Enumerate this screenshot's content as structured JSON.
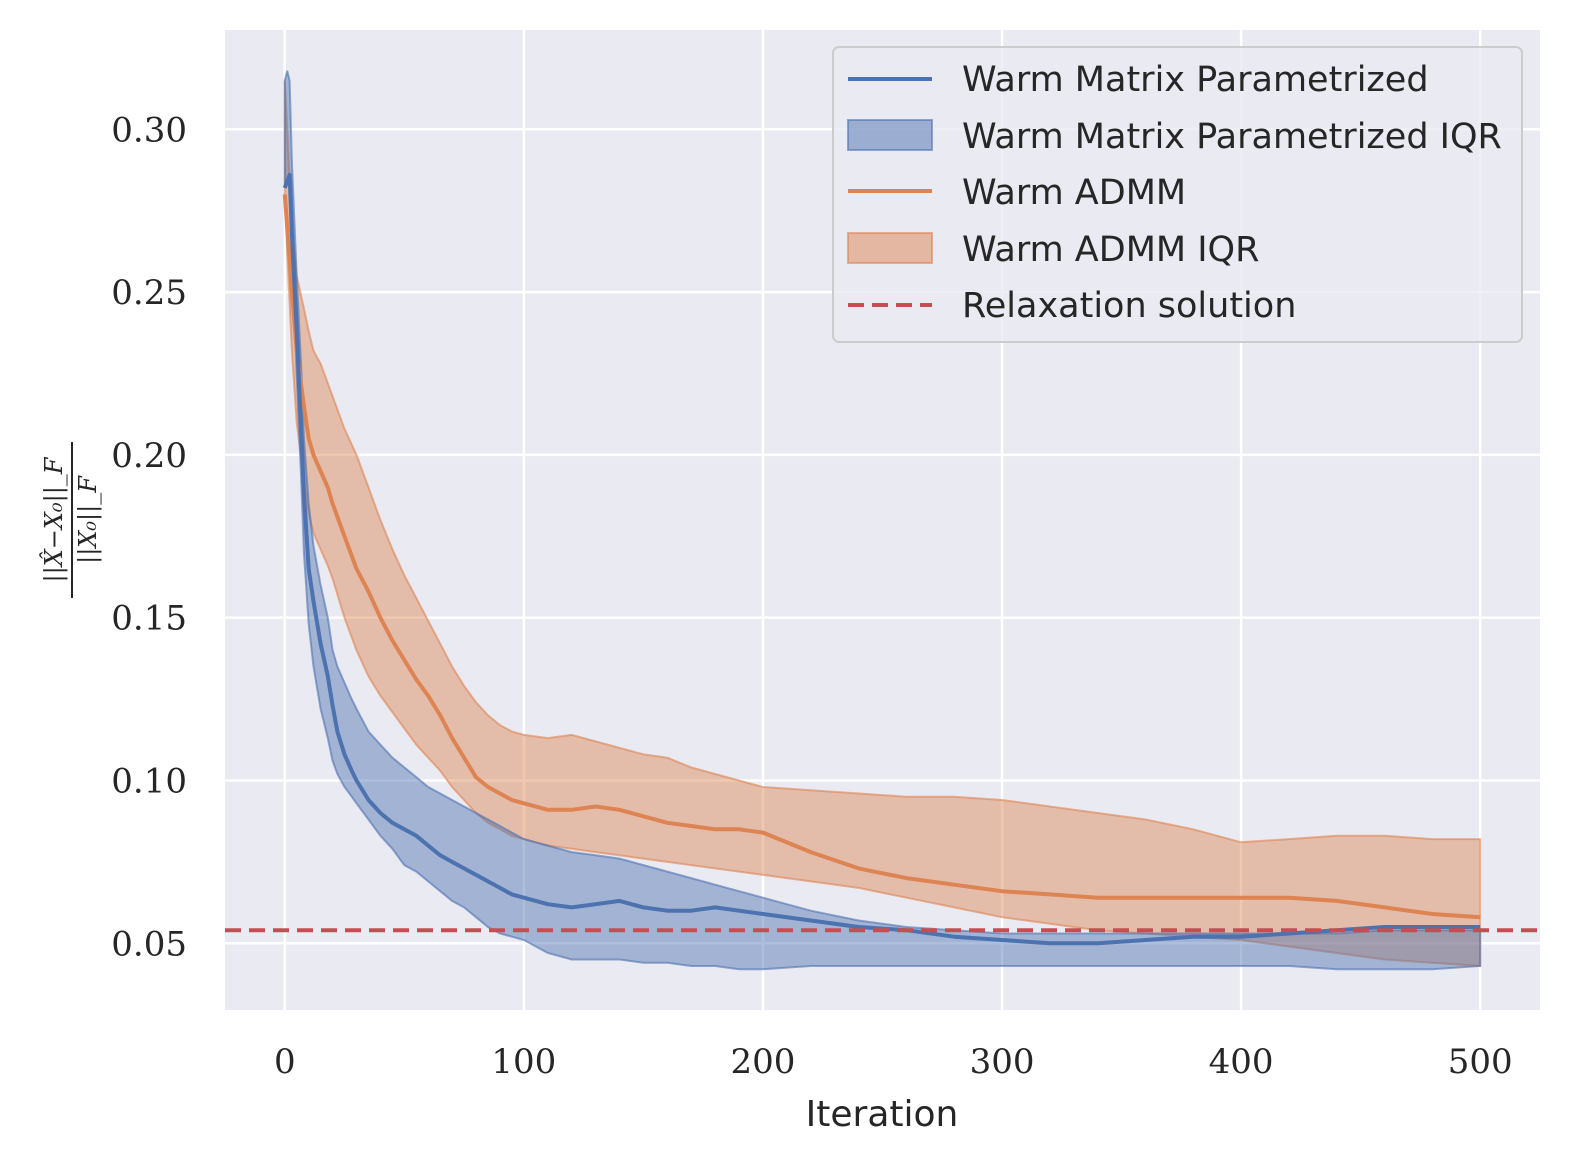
{
  "chart_data": {
    "type": "line",
    "title": "",
    "xlabel": "Iteration",
    "ylabel_numerator": "||X̂−X₀||_F",
    "ylabel_denominator": "||X₀||_F",
    "xlim": [
      -25,
      525
    ],
    "ylim": [
      0.0295,
      0.3305
    ],
    "xticks": [
      0,
      100,
      200,
      300,
      400,
      500
    ],
    "yticks": [
      0.05,
      0.1,
      0.15,
      0.2,
      0.25,
      0.3
    ],
    "xtick_labels": [
      "0",
      "100",
      "200",
      "300",
      "400",
      "500"
    ],
    "ytick_labels": [
      "0.05",
      "0.10",
      "0.15",
      "0.20",
      "0.25",
      "0.30"
    ],
    "grid": true,
    "legend_position": "top-right",
    "colors": {
      "background": "#EAEAF2",
      "grid": "#FFFFFF",
      "blue": "#4C72B0",
      "orange": "#DD8452",
      "red": "#C44E52"
    },
    "legend": [
      {
        "label": "Warm Matrix Parametrized",
        "kind": "line",
        "color": "#4C72B0"
      },
      {
        "label": "Warm Matrix Parametrized IQR",
        "kind": "band",
        "color": "#4C72B0"
      },
      {
        "label": "Warm ADMM",
        "kind": "line",
        "color": "#DD8452"
      },
      {
        "label": "Warm ADMM IQR",
        "kind": "band",
        "color": "#DD8452"
      },
      {
        "label": "Relaxation solution",
        "kind": "dashed",
        "color": "#C44E52"
      }
    ],
    "relaxation_solution": 0.054,
    "series": [
      {
        "name": "Warm Matrix Parametrized",
        "x": [
          0,
          1,
          2,
          3,
          5,
          7,
          8,
          10,
          12,
          15,
          18,
          20,
          22,
          25,
          28,
          30,
          35,
          40,
          45,
          50,
          55,
          60,
          65,
          70,
          75,
          80,
          85,
          90,
          95,
          100,
          110,
          120,
          130,
          140,
          150,
          160,
          170,
          180,
          190,
          200,
          220,
          240,
          260,
          280,
          300,
          320,
          340,
          360,
          380,
          400,
          420,
          440,
          460,
          480,
          500
        ],
        "median": [
          0.282,
          0.284,
          0.286,
          0.268,
          0.238,
          0.205,
          0.188,
          0.165,
          0.155,
          0.142,
          0.132,
          0.123,
          0.115,
          0.108,
          0.103,
          0.1,
          0.094,
          0.09,
          0.087,
          0.085,
          0.083,
          0.08,
          0.077,
          0.075,
          0.073,
          0.071,
          0.069,
          0.067,
          0.065,
          0.064,
          0.062,
          0.061,
          0.062,
          0.063,
          0.061,
          0.06,
          0.06,
          0.061,
          0.06,
          0.059,
          0.057,
          0.055,
          0.054,
          0.052,
          0.051,
          0.05,
          0.05,
          0.051,
          0.052,
          0.052,
          0.053,
          0.054,
          0.055,
          0.055,
          0.055
        ],
        "q1": [
          0.282,
          0.284,
          0.286,
          0.262,
          0.225,
          0.19,
          0.17,
          0.148,
          0.135,
          0.122,
          0.113,
          0.106,
          0.102,
          0.098,
          0.095,
          0.093,
          0.088,
          0.083,
          0.079,
          0.074,
          0.072,
          0.069,
          0.066,
          0.063,
          0.061,
          0.058,
          0.055,
          0.053,
          0.052,
          0.051,
          0.047,
          0.045,
          0.045,
          0.045,
          0.044,
          0.044,
          0.043,
          0.043,
          0.042,
          0.042,
          0.043,
          0.043,
          0.043,
          0.043,
          0.043,
          0.043,
          0.043,
          0.043,
          0.043,
          0.043,
          0.043,
          0.042,
          0.042,
          0.042,
          0.043
        ],
        "q3": [
          0.315,
          0.318,
          0.315,
          0.29,
          0.255,
          0.225,
          0.205,
          0.185,
          0.172,
          0.16,
          0.15,
          0.14,
          0.135,
          0.13,
          0.125,
          0.122,
          0.115,
          0.111,
          0.107,
          0.104,
          0.101,
          0.098,
          0.096,
          0.094,
          0.092,
          0.09,
          0.088,
          0.086,
          0.084,
          0.082,
          0.08,
          0.078,
          0.077,
          0.076,
          0.074,
          0.072,
          0.07,
          0.068,
          0.066,
          0.064,
          0.06,
          0.057,
          0.055,
          0.054,
          0.053,
          0.053,
          0.053,
          0.053,
          0.053,
          0.053,
          0.053,
          0.053,
          0.054,
          0.054,
          0.054
        ]
      },
      {
        "name": "Warm ADMM",
        "x": [
          0,
          1,
          3,
          5,
          8,
          10,
          12,
          15,
          18,
          20,
          25,
          30,
          35,
          40,
          45,
          50,
          55,
          60,
          65,
          70,
          75,
          80,
          85,
          90,
          95,
          100,
          110,
          120,
          130,
          140,
          150,
          160,
          170,
          180,
          190,
          200,
          220,
          240,
          260,
          280,
          300,
          320,
          340,
          360,
          380,
          400,
          420,
          440,
          460,
          480,
          500
        ],
        "median": [
          0.28,
          0.27,
          0.25,
          0.232,
          0.215,
          0.205,
          0.2,
          0.195,
          0.19,
          0.185,
          0.175,
          0.165,
          0.158,
          0.15,
          0.143,
          0.137,
          0.131,
          0.126,
          0.12,
          0.113,
          0.107,
          0.101,
          0.098,
          0.096,
          0.094,
          0.093,
          0.091,
          0.091,
          0.092,
          0.091,
          0.089,
          0.087,
          0.086,
          0.085,
          0.085,
          0.084,
          0.078,
          0.073,
          0.07,
          0.068,
          0.066,
          0.065,
          0.064,
          0.064,
          0.064,
          0.064,
          0.064,
          0.063,
          0.061,
          0.059,
          0.058
        ],
        "q1": [
          0.28,
          0.262,
          0.232,
          0.21,
          0.192,
          0.182,
          0.176,
          0.171,
          0.166,
          0.162,
          0.15,
          0.14,
          0.132,
          0.126,
          0.121,
          0.116,
          0.111,
          0.107,
          0.103,
          0.098,
          0.094,
          0.09,
          0.087,
          0.085,
          0.083,
          0.082,
          0.08,
          0.079,
          0.078,
          0.077,
          0.076,
          0.075,
          0.074,
          0.073,
          0.072,
          0.071,
          0.069,
          0.067,
          0.064,
          0.061,
          0.058,
          0.056,
          0.054,
          0.053,
          0.052,
          0.051,
          0.049,
          0.047,
          0.045,
          0.044,
          0.043
        ],
        "q3": [
          0.315,
          0.3,
          0.27,
          0.255,
          0.245,
          0.238,
          0.232,
          0.228,
          0.222,
          0.218,
          0.208,
          0.2,
          0.19,
          0.18,
          0.171,
          0.163,
          0.156,
          0.149,
          0.142,
          0.135,
          0.129,
          0.124,
          0.12,
          0.117,
          0.115,
          0.114,
          0.113,
          0.114,
          0.112,
          0.11,
          0.108,
          0.107,
          0.104,
          0.102,
          0.1,
          0.098,
          0.097,
          0.096,
          0.095,
          0.095,
          0.094,
          0.092,
          0.09,
          0.088,
          0.085,
          0.081,
          0.082,
          0.083,
          0.083,
          0.082,
          0.082
        ]
      }
    ]
  }
}
